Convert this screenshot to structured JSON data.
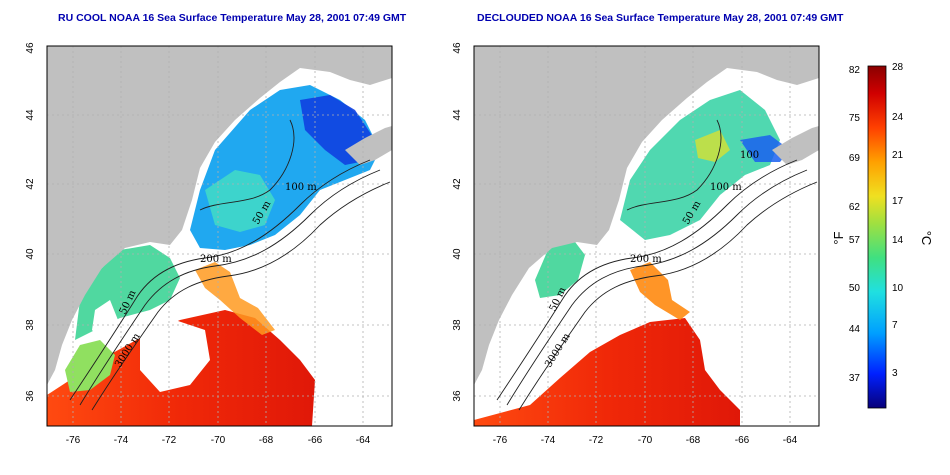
{
  "panels": [
    {
      "id": "left",
      "title": "RU COOL NOAA 16 Sea Surface Temperature May 28, 2001 07:49 GMT",
      "contour_labels": [
        "100 m",
        "50 m",
        "200 m",
        "50 m",
        "3000 m"
      ]
    },
    {
      "id": "right",
      "title": "DECLOUDED NOAA 16 Sea Surface Temperature May 28, 2001 07:49 GMT",
      "contour_labels": [
        "100",
        "100 m",
        "50 m",
        "200 m",
        "50 m",
        "3000 m"
      ]
    }
  ],
  "axes": {
    "lon_ticks": [
      "-76",
      "-74",
      "-72",
      "-70",
      "-68",
      "-66",
      "-64"
    ],
    "lat_ticks": [
      "36",
      "38",
      "40",
      "42",
      "44",
      "46"
    ]
  },
  "colorbar": {
    "fahrenheit_ticks": [
      "82",
      "75",
      "69",
      "62",
      "57",
      "50",
      "44",
      "37"
    ],
    "celsius_ticks": [
      "28",
      "24",
      "21",
      "17",
      "14",
      "10",
      "7",
      "3"
    ],
    "fahrenheit_unit": "°F",
    "celsius_unit": "°C",
    "colors": [
      "#08007a",
      "#0020ff",
      "#00a0ff",
      "#20e0e0",
      "#40e080",
      "#a0e040",
      "#f0e020",
      "#ffa000",
      "#ff4000",
      "#d00000",
      "#8a0000"
    ]
  },
  "colors": {
    "land": "#c0c0c0",
    "cloud": "#ffffff",
    "title": "#0000b0"
  }
}
